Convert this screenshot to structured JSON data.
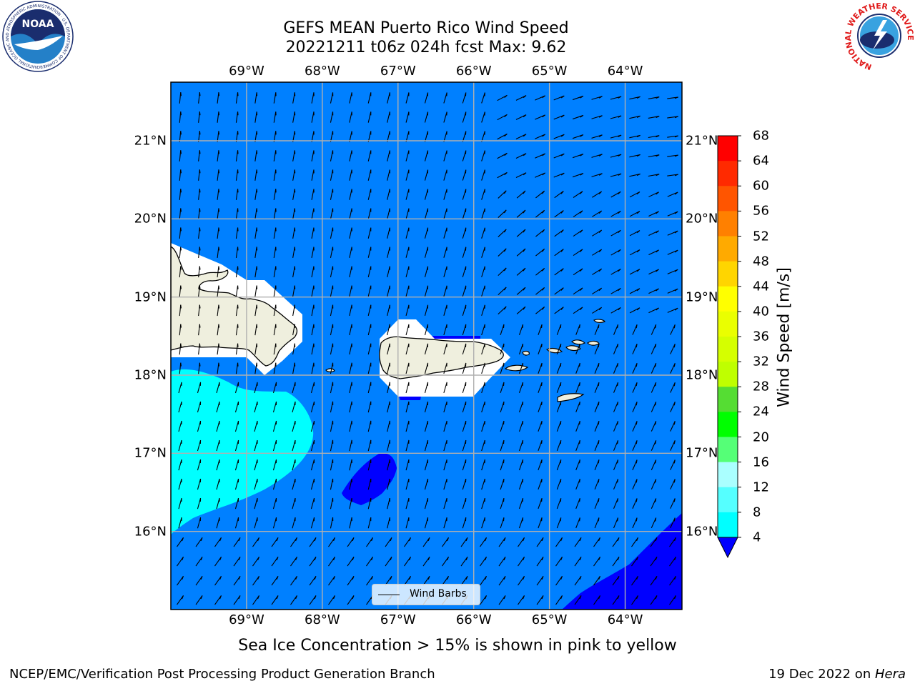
{
  "title": {
    "line1": "GEFS MEAN Puerto Rico Wind Speed",
    "line2": "20221211 t06z 024h fcst   Max: 9.62"
  },
  "axes": {
    "lon_labels": [
      "69°W",
      "68°W",
      "67°W",
      "66°W",
      "65°W",
      "64°W"
    ],
    "lat_labels": [
      "21°N",
      "20°N",
      "19°N",
      "18°N",
      "17°N",
      "16°N"
    ],
    "lon_range": [
      -70.0,
      -63.25
    ],
    "lat_range": [
      15.0,
      21.75
    ],
    "grid": true
  },
  "colorbar": {
    "label": "Wind Speed [m/s]",
    "ticks": [
      "68",
      "64",
      "60",
      "56",
      "52",
      "48",
      "44",
      "40",
      "36",
      "32",
      "28",
      "24",
      "20",
      "16",
      "12",
      "8",
      "4"
    ],
    "colors": [
      "#ff0000",
      "#ff2a00",
      "#ff5500",
      "#ff8000",
      "#ffaa00",
      "#ffd500",
      "#ffff00",
      "#eaff00",
      "#d5ff00",
      "#bfff00",
      "#55dd33",
      "#00ff00",
      "#55ff77",
      "#aaffff",
      "#55ffff",
      "#00ffff",
      "#0080ff",
      "#0000ff"
    ]
  },
  "legend": {
    "label": "Wind Barbs"
  },
  "note": "Sea Ice Concentration > 15% is shown in pink to yellow",
  "footer": {
    "left": "NCEP/EMC/Verification Post Processing Product Generation Branch",
    "date": "19 Dec 2022 on ",
    "host": "Hera"
  },
  "logos": {
    "noaa": {
      "text": "NOAA",
      "ring_text": "NATIONAL OCEANIC AND ATMOSPHERIC ADMINISTRATION · U.S. DEPARTMENT OF COMMERCE"
    },
    "nws": {
      "ring_text": "NATIONAL WEATHER SERVICE"
    }
  },
  "chart_data": {
    "type": "heatmap",
    "field": "wind speed [m/s]",
    "background_level_range": [
      4,
      8
    ],
    "regions": [
      {
        "level_range": [
          8,
          12
        ],
        "location": "southwest, south of Hispaniola (~70°W–68°W, 16°N–18.1°N)"
      },
      {
        "level_range": [
          0,
          4
        ],
        "location": "southwest of Puerto Rico (~67.5°W–67°W, 16.4°N–17°N)"
      },
      {
        "level_range": [
          0,
          4
        ],
        "location": "southeast corner (~64.8°W–63.25°W, 15°N–16.2°N)"
      }
    ],
    "wind_barbs": true,
    "max": 9.62
  }
}
